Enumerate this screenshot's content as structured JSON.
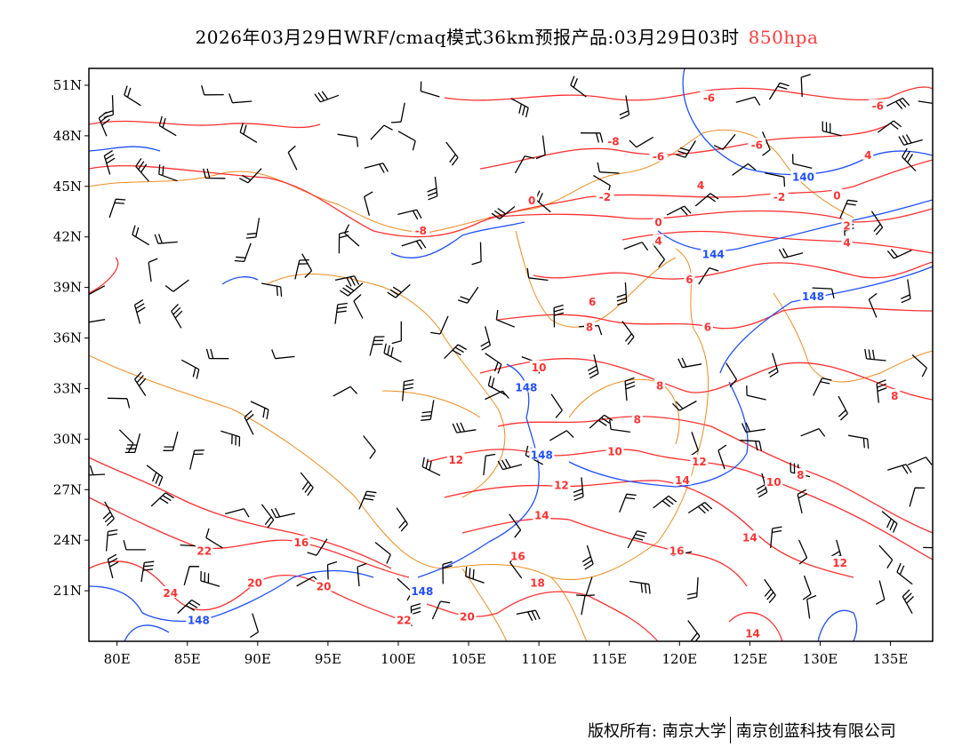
{
  "title": {
    "main": "2026年03月29日WRF/cmaq模式36km预报产品:03月29日03时",
    "level": "850hpa",
    "level_color": "#ff3b3b"
  },
  "map": {
    "lon_range": [
      78,
      138
    ],
    "lat_range": [
      18,
      52
    ],
    "lon_ticks": [
      {
        "v": 80,
        "label": "80E"
      },
      {
        "v": 85,
        "label": "85E"
      },
      {
        "v": 90,
        "label": "90E"
      },
      {
        "v": 95,
        "label": "95E"
      },
      {
        "v": 100,
        "label": "100E"
      },
      {
        "v": 105,
        "label": "105E"
      },
      {
        "v": 110,
        "label": "110E"
      },
      {
        "v": 115,
        "label": "115E"
      },
      {
        "v": 120,
        "label": "120E"
      },
      {
        "v": 125,
        "label": "125E"
      },
      {
        "v": 130,
        "label": "130E"
      },
      {
        "v": 135,
        "label": "135E"
      }
    ],
    "lat_ticks": [
      {
        "v": 51,
        "label": "51N"
      },
      {
        "v": 48,
        "label": "48N"
      },
      {
        "v": 45,
        "label": "45N"
      },
      {
        "v": 42,
        "label": "42N"
      },
      {
        "v": 39,
        "label": "39N"
      },
      {
        "v": 36,
        "label": "36N"
      },
      {
        "v": 33,
        "label": "33N"
      },
      {
        "v": 30,
        "label": "30N"
      },
      {
        "v": 27,
        "label": "27N"
      },
      {
        "v": 24,
        "label": "24N"
      },
      {
        "v": 21,
        "label": "21N"
      }
    ],
    "colors": {
      "temperature": "#ff3030",
      "height": "#1f4fff",
      "border": "#f08c1e",
      "wind": "#000000"
    },
    "temperature_labels": [
      {
        "t": "-6",
        "lon": 122.1,
        "lat": 50.3
      },
      {
        "t": "-6",
        "lon": 134.1,
        "lat": 49.8
      },
      {
        "t": "-8",
        "lon": 115.3,
        "lat": 47.7
      },
      {
        "t": "-6",
        "lon": 125.5,
        "lat": 47.5
      },
      {
        "t": "-6",
        "lon": 118.5,
        "lat": 46.8
      },
      {
        "t": "4",
        "lon": 133.4,
        "lat": 46.9
      },
      {
        "t": "4",
        "lon": 121.5,
        "lat": 45.1
      },
      {
        "t": "-2",
        "lon": 114.7,
        "lat": 44.4
      },
      {
        "t": "-2",
        "lon": 127.1,
        "lat": 44.4
      },
      {
        "t": "0",
        "lon": 131.2,
        "lat": 44.5
      },
      {
        "t": "0",
        "lon": 109.5,
        "lat": 44.2
      },
      {
        "t": "-8",
        "lon": 101.6,
        "lat": 42.4
      },
      {
        "t": "0",
        "lon": 118.5,
        "lat": 42.9
      },
      {
        "t": "2",
        "lon": 131.9,
        "lat": 42.7
      },
      {
        "t": "4",
        "lon": 118.5,
        "lat": 41.8
      },
      {
        "t": "4",
        "lon": 131.9,
        "lat": 41.7
      },
      {
        "t": "6",
        "lon": 120.7,
        "lat": 39.5
      },
      {
        "t": "6",
        "lon": 113.8,
        "lat": 38.2
      },
      {
        "t": "8",
        "lon": 113.6,
        "lat": 36.7
      },
      {
        "t": "6",
        "lon": 122.0,
        "lat": 36.7
      },
      {
        "t": "10",
        "lon": 110.0,
        "lat": 34.3
      },
      {
        "t": "8",
        "lon": 118.6,
        "lat": 33.2
      },
      {
        "t": "8",
        "lon": 135.3,
        "lat": 32.6
      },
      {
        "t": "8",
        "lon": 117.0,
        "lat": 31.2
      },
      {
        "t": "10",
        "lon": 115.4,
        "lat": 29.3
      },
      {
        "t": "12",
        "lon": 121.4,
        "lat": 28.7
      },
      {
        "t": "12",
        "lon": 104.1,
        "lat": 28.8
      },
      {
        "t": "12",
        "lon": 111.6,
        "lat": 27.3
      },
      {
        "t": "14",
        "lon": 120.2,
        "lat": 27.6
      },
      {
        "t": "10",
        "lon": 126.7,
        "lat": 27.5
      },
      {
        "t": "8",
        "lon": 128.6,
        "lat": 27.9
      },
      {
        "t": "14",
        "lon": 110.2,
        "lat": 25.5
      },
      {
        "t": "16",
        "lon": 93.1,
        "lat": 23.9
      },
      {
        "t": "16",
        "lon": 108.5,
        "lat": 23.1
      },
      {
        "t": "16",
        "lon": 119.8,
        "lat": 23.4
      },
      {
        "t": "14",
        "lon": 125.0,
        "lat": 24.2
      },
      {
        "t": "12",
        "lon": 131.4,
        "lat": 22.7
      },
      {
        "t": "22",
        "lon": 86.2,
        "lat": 23.4
      },
      {
        "t": "24",
        "lon": 83.8,
        "lat": 20.9
      },
      {
        "t": "20",
        "lon": 89.8,
        "lat": 21.5
      },
      {
        "t": "20",
        "lon": 94.7,
        "lat": 21.3
      },
      {
        "t": "18",
        "lon": 109.9,
        "lat": 21.5
      },
      {
        "t": "22",
        "lon": 100.4,
        "lat": 19.3
      },
      {
        "t": "20",
        "lon": 104.9,
        "lat": 19.5
      },
      {
        "t": "14",
        "lon": 125.2,
        "lat": 18.5
      }
    ],
    "height_labels": [
      {
        "t": "140",
        "lon": 128.8,
        "lat": 45.6
      },
      {
        "t": "144",
        "lon": 122.4,
        "lat": 41.0
      },
      {
        "t": "148",
        "lon": 129.5,
        "lat": 38.5
      },
      {
        "t": "148",
        "lon": 109.1,
        "lat": 33.1
      },
      {
        "t": "148",
        "lon": 110.2,
        "lat": 29.1
      },
      {
        "t": "148",
        "lon": 101.7,
        "lat": 21.0
      },
      {
        "t": "148",
        "lon": 85.8,
        "lat": 19.3
      }
    ]
  },
  "footer": {
    "copyright": "版权所有: 南京大学",
    "company": "南京创蓝科技有限公司"
  }
}
